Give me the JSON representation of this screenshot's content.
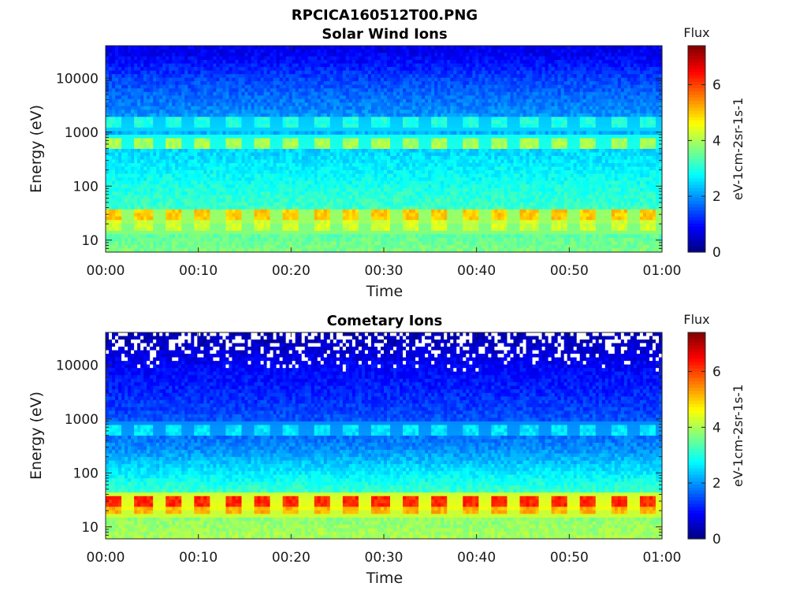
{
  "figure_title": "RPCICA160512T00.PNG",
  "chart_data": [
    {
      "type": "heatmap",
      "title": "Solar Wind Ions",
      "xlabel": "Time",
      "ylabel": "Energy (eV)",
      "x_tick_labels": [
        "00:00",
        "00:10",
        "00:20",
        "00:30",
        "00:40",
        "00:50",
        "01:00"
      ],
      "x_range_minutes": [
        0,
        60
      ],
      "y_scale": "log",
      "y_range_eV": [
        6,
        40000
      ],
      "y_tick_values": [
        10,
        100,
        1000,
        10000
      ],
      "y_tick_labels": [
        "10",
        "100",
        "1000",
        "10000"
      ],
      "colorbar": {
        "title": "Flux",
        "label": "eV-1cm-2sr-1s-1",
        "range": [
          0,
          7.4
        ],
        "ticks": [
          0,
          2,
          4,
          6
        ],
        "tick_labels": [
          "0",
          "2",
          "4",
          "6"
        ],
        "colormap": "jet"
      },
      "grid": false,
      "features": {
        "background_levels": [
          {
            "energy_eV": 30000,
            "flux": 0.8
          },
          {
            "energy_eV": 10000,
            "flux": 1.4
          },
          {
            "energy_eV": 2000,
            "flux": 2.0
          },
          {
            "energy_eV": 300,
            "flux": 2.6
          },
          {
            "energy_eV": 60,
            "flux": 3.1
          },
          {
            "energy_eV": 15,
            "flux": 3.4
          },
          {
            "energy_eV": 6,
            "flux": 3.7
          }
        ],
        "bands": [
          {
            "energy_eV": 650,
            "flux": 4.0,
            "period_minutes": 3.2
          },
          {
            "energy_eV": 1500,
            "flux": 3.0,
            "period_minutes": 3.2
          },
          {
            "energy_eV": 28,
            "flux": 5.0,
            "period_minutes": 3.2
          },
          {
            "energy_eV": 18,
            "flux": 4.3,
            "period_minutes": 3.2
          }
        ],
        "missing_data_high_energy": false
      }
    },
    {
      "type": "heatmap",
      "title": "Cometary Ions",
      "xlabel": "Time",
      "ylabel": "Energy (eV)",
      "x_tick_labels": [
        "00:00",
        "00:10",
        "00:20",
        "00:30",
        "00:40",
        "00:50",
        "01:00"
      ],
      "x_range_minutes": [
        0,
        60
      ],
      "y_scale": "log",
      "y_range_eV": [
        6,
        40000
      ],
      "y_tick_values": [
        10,
        100,
        1000,
        10000
      ],
      "y_tick_labels": [
        "10",
        "100",
        "1000",
        "10000"
      ],
      "colorbar": {
        "title": "Flux",
        "label": "eV-1cm-2sr-1s-1",
        "range": [
          0,
          7.4
        ],
        "ticks": [
          0,
          2,
          4,
          6
        ],
        "tick_labels": [
          "0",
          "2",
          "4",
          "6"
        ],
        "colormap": "jet"
      },
      "grid": false,
      "features": {
        "background_levels": [
          {
            "energy_eV": 30000,
            "flux": 0.4
          },
          {
            "energy_eV": 10000,
            "flux": 0.9
          },
          {
            "energy_eV": 2000,
            "flux": 1.3
          },
          {
            "energy_eV": 300,
            "flux": 1.9
          },
          {
            "energy_eV": 60,
            "flux": 3.0
          },
          {
            "energy_eV": 15,
            "flux": 3.8
          },
          {
            "energy_eV": 6,
            "flux": 4.0
          }
        ],
        "bands": [
          {
            "energy_eV": 650,
            "flux": 2.6,
            "period_minutes": 3.2
          },
          {
            "energy_eV": 30,
            "flux": 6.2,
            "period_minutes": 3.2
          },
          {
            "energy_eV": 20,
            "flux": 5.2,
            "period_minutes": 3.2
          }
        ],
        "missing_data_high_energy": true
      }
    }
  ]
}
